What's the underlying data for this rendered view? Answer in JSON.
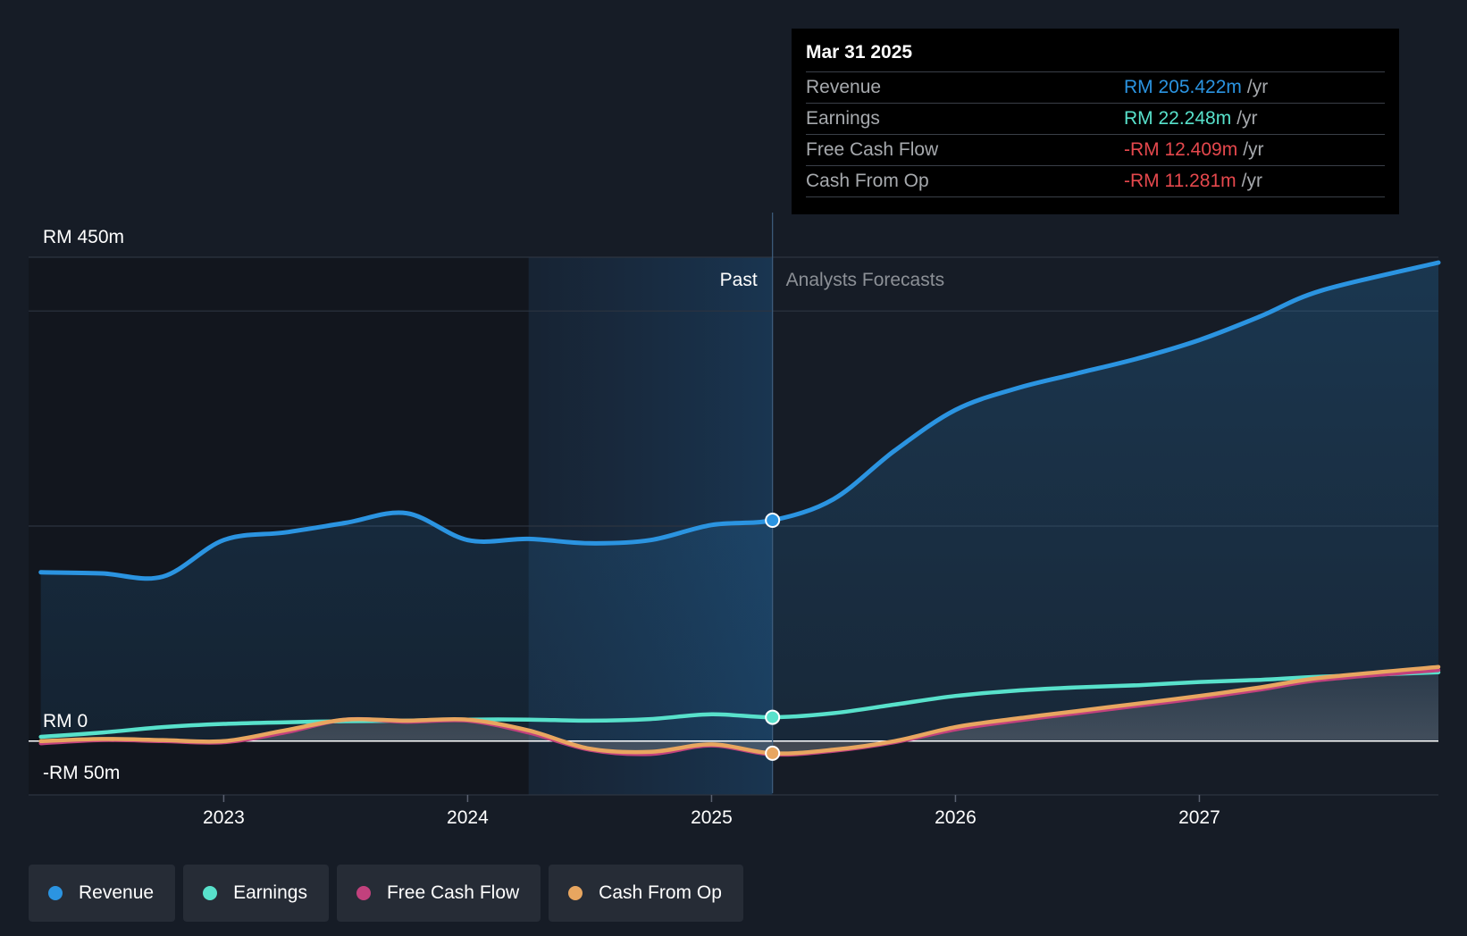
{
  "chart_data": {
    "type": "line",
    "currency_prefix": "RM",
    "y_axis_labels": {
      "top": "RM 450m",
      "zero": "RM 0",
      "bottom": "-RM 50m"
    },
    "ylim": [
      -50,
      450
    ],
    "x_ticks": [
      "2023",
      "2024",
      "2025",
      "2026",
      "2027"
    ],
    "xlim": [
      2022.2,
      2027.98
    ],
    "past_label": "Past",
    "forecast_label": "Analysts Forecasts",
    "past_region_start": 2024.25,
    "forecast_start": 2025.25,
    "series": [
      {
        "name": "Revenue",
        "color": "#2b94e1",
        "show_area": true,
        "points": [
          [
            2022.25,
            157
          ],
          [
            2022.5,
            156
          ],
          [
            2022.75,
            153
          ],
          [
            2023.0,
            187
          ],
          [
            2023.25,
            194
          ],
          [
            2023.5,
            203
          ],
          [
            2023.75,
            212
          ],
          [
            2024.0,
            187
          ],
          [
            2024.25,
            188
          ],
          [
            2024.5,
            184
          ],
          [
            2024.75,
            187
          ],
          [
            2025.0,
            201
          ],
          [
            2025.25,
            205.4
          ],
          [
            2025.5,
            225
          ],
          [
            2025.75,
            270
          ],
          [
            2026.0,
            308
          ],
          [
            2026.25,
            328
          ],
          [
            2026.5,
            342
          ],
          [
            2026.75,
            356
          ],
          [
            2027.0,
            373
          ],
          [
            2027.25,
            395
          ],
          [
            2027.5,
            419
          ],
          [
            2027.98,
            445
          ]
        ]
      },
      {
        "name": "Earnings",
        "color": "#58e1cb",
        "show_area": false,
        "points": [
          [
            2022.25,
            4
          ],
          [
            2022.5,
            8
          ],
          [
            2022.75,
            13
          ],
          [
            2023.0,
            16
          ],
          [
            2023.25,
            17.5
          ],
          [
            2023.5,
            18.5
          ],
          [
            2023.75,
            19
          ],
          [
            2024.0,
            20
          ],
          [
            2024.25,
            20
          ],
          [
            2024.5,
            19
          ],
          [
            2024.75,
            20.5
          ],
          [
            2025.0,
            25
          ],
          [
            2025.25,
            22.2
          ],
          [
            2025.5,
            26
          ],
          [
            2025.75,
            34
          ],
          [
            2026.0,
            42
          ],
          [
            2026.25,
            47
          ],
          [
            2026.5,
            50
          ],
          [
            2026.75,
            52
          ],
          [
            2027.0,
            55
          ],
          [
            2027.25,
            57
          ],
          [
            2027.5,
            60
          ],
          [
            2027.98,
            64
          ]
        ]
      },
      {
        "name": "Free Cash Flow",
        "color": "#c2417d",
        "show_area": false,
        "points": [
          [
            2022.25,
            -2
          ],
          [
            2022.5,
            1
          ],
          [
            2022.75,
            0
          ],
          [
            2023.0,
            -1
          ],
          [
            2023.25,
            8
          ],
          [
            2023.5,
            20
          ],
          [
            2023.75,
            18
          ],
          [
            2024.0,
            19
          ],
          [
            2024.25,
            8
          ],
          [
            2024.5,
            -8
          ],
          [
            2024.75,
            -12
          ],
          [
            2025.0,
            -4
          ],
          [
            2025.25,
            -12.4
          ],
          [
            2025.5,
            -9
          ],
          [
            2025.75,
            -1
          ],
          [
            2026.0,
            11
          ],
          [
            2026.25,
            19
          ],
          [
            2026.5,
            26
          ],
          [
            2026.75,
            33
          ],
          [
            2027.0,
            40
          ],
          [
            2027.25,
            48
          ],
          [
            2027.5,
            57
          ],
          [
            2027.98,
            66
          ]
        ]
      },
      {
        "name": "Cash From Op",
        "color": "#e8a660",
        "show_area": false,
        "points": [
          [
            2022.25,
            0
          ],
          [
            2022.5,
            2
          ],
          [
            2022.75,
            1
          ],
          [
            2023.0,
            0
          ],
          [
            2023.25,
            10
          ],
          [
            2023.5,
            20
          ],
          [
            2023.75,
            19
          ],
          [
            2024.0,
            20
          ],
          [
            2024.25,
            10
          ],
          [
            2024.5,
            -7
          ],
          [
            2024.75,
            -10
          ],
          [
            2025.0,
            -3
          ],
          [
            2025.25,
            -11.3
          ],
          [
            2025.5,
            -8
          ],
          [
            2025.75,
            0
          ],
          [
            2026.0,
            13
          ],
          [
            2026.25,
            21
          ],
          [
            2026.5,
            28
          ],
          [
            2026.75,
            35
          ],
          [
            2027.0,
            42
          ],
          [
            2027.25,
            50
          ],
          [
            2027.5,
            59
          ],
          [
            2027.98,
            69
          ]
        ]
      }
    ]
  },
  "tooltip": {
    "date": "Mar 31 2025",
    "rows": [
      {
        "name": "Revenue",
        "value": "RM 205.422m",
        "unit": "/yr",
        "color": "#2b94e1"
      },
      {
        "name": "Earnings",
        "value": "RM 22.248m",
        "unit": "/yr",
        "color": "#58e1cb"
      },
      {
        "name": "Free Cash Flow",
        "value": "-RM 12.409m",
        "unit": "/yr",
        "color": "#e5484d"
      },
      {
        "name": "Cash From Op",
        "value": "-RM 11.281m",
        "unit": "/yr",
        "color": "#e5484d"
      }
    ]
  },
  "legend": [
    {
      "label": "Revenue",
      "color": "#2b94e1"
    },
    {
      "label": "Earnings",
      "color": "#58e1cb"
    },
    {
      "label": "Free Cash Flow",
      "color": "#c2417d"
    },
    {
      "label": "Cash From Op",
      "color": "#e8a660"
    }
  ]
}
